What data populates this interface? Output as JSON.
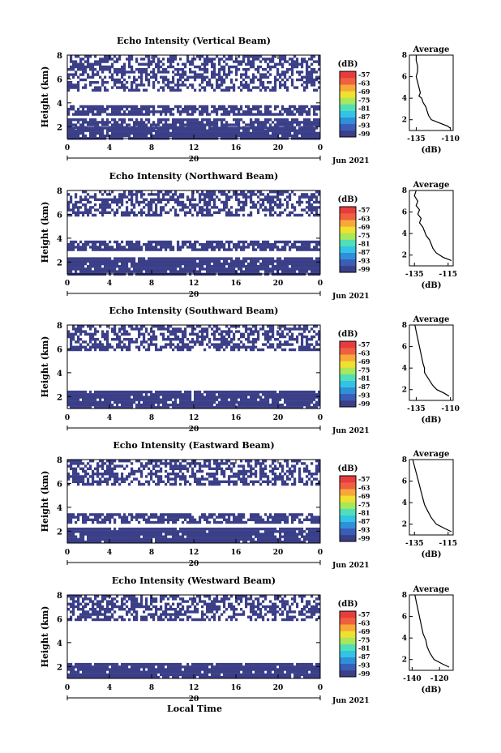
{
  "figure": {
    "xlabel_bottom": "Local Time",
    "colorbar_unit": "(dB)",
    "colorbar_ticks": [
      "-57",
      "-63",
      "-69",
      "-75",
      "-81",
      "-87",
      "-93",
      "-99"
    ],
    "colormap": [
      "#3b3f88",
      "#3a5db6",
      "#2f8fd8",
      "#33c3e6",
      "#4fe0b8",
      "#a8e85a",
      "#f0e030",
      "#f8a838",
      "#f06040",
      "#e83c3c"
    ],
    "background_color": "#3b3f88"
  },
  "chart_data": [
    {
      "type": "heatmap",
      "title": "Echo Intensity (Vertical Beam)",
      "ylabel": "Height (km)",
      "yticks": [
        "2",
        "4",
        "6",
        "8"
      ],
      "ylim": [
        1,
        8
      ],
      "xticks": [
        "0",
        "4",
        "8",
        "12",
        "16",
        "20",
        "0"
      ],
      "xlim": [
        0,
        24
      ],
      "date_marker": "20",
      "date_label": "Jun 2021",
      "colorbar_unit": "(dB)",
      "colorbar_ticks": [
        "-57",
        "-63",
        "-69",
        "-75",
        "-81",
        "-87",
        "-93",
        "-99"
      ],
      "value_range": [
        -99,
        -57
      ],
      "echo_bands_km": [
        [
          1.0,
          2.0
        ],
        [
          2.0,
          2.7
        ],
        [
          3.0,
          3.8
        ],
        [
          5.0,
          8.0
        ]
      ],
      "average_profile": {
        "title": "Average",
        "xlabel": "(dB)",
        "xticks": [
          "-135",
          "-110"
        ],
        "xlim": [
          -140,
          -108
        ],
        "points": [
          [
            -135,
            8.0
          ],
          [
            -135,
            7.5
          ],
          [
            -134,
            7.0
          ],
          [
            -134,
            6.5
          ],
          [
            -135,
            6.0
          ],
          [
            -134,
            5.5
          ],
          [
            -133,
            5.0
          ],
          [
            -132,
            4.5
          ],
          [
            -133,
            4.2
          ],
          [
            -131,
            4.0
          ],
          [
            -130,
            3.6
          ],
          [
            -128,
            3.2
          ],
          [
            -127,
            2.8
          ],
          [
            -126,
            2.4
          ],
          [
            -124,
            2.0
          ],
          [
            -118,
            1.7
          ],
          [
            -112,
            1.4
          ],
          [
            -110,
            1.2
          ]
        ]
      }
    },
    {
      "type": "heatmap",
      "title": "Echo Intensity (Northward Beam)",
      "ylabel": "Height (km)",
      "yticks": [
        "2",
        "4",
        "6",
        "8"
      ],
      "ylim": [
        1,
        8
      ],
      "xticks": [
        "0",
        "4",
        "8",
        "12",
        "16",
        "20",
        "0"
      ],
      "xlim": [
        0,
        24
      ],
      "date_marker": "20",
      "date_label": "Jun 2021",
      "colorbar_unit": "(dB)",
      "colorbar_ticks": [
        "-57",
        "-63",
        "-69",
        "-75",
        "-81",
        "-87",
        "-93",
        "-99"
      ],
      "value_range": [
        -99,
        -57
      ],
      "echo_bands_km": [
        [
          1.0,
          2.4
        ],
        [
          3.0,
          3.8
        ],
        [
          6.0,
          8.0
        ]
      ],
      "average_profile": {
        "title": "Average",
        "xlabel": "(dB)",
        "xticks": [
          "-135",
          "-115"
        ],
        "xlim": [
          -138,
          -112
        ],
        "points": [
          [
            -134,
            8.0
          ],
          [
            -135,
            7.5
          ],
          [
            -133,
            7.0
          ],
          [
            -134,
            6.6
          ],
          [
            -132,
            6.2
          ],
          [
            -133,
            5.8
          ],
          [
            -131,
            5.4
          ],
          [
            -132,
            5.0
          ],
          [
            -130,
            4.6
          ],
          [
            -129,
            4.2
          ],
          [
            -128,
            3.8
          ],
          [
            -126,
            3.4
          ],
          [
            -125,
            3.0
          ],
          [
            -124,
            2.6
          ],
          [
            -122,
            2.2
          ],
          [
            -118,
            1.8
          ],
          [
            -113,
            1.5
          ]
        ]
      }
    },
    {
      "type": "heatmap",
      "title": "Echo Intensity (Southward Beam)",
      "ylabel": "Height (km)",
      "yticks": [
        "2",
        "4",
        "6",
        "8"
      ],
      "ylim": [
        1,
        8
      ],
      "xticks": [
        "0",
        "4",
        "8",
        "12",
        "16",
        "20",
        "0"
      ],
      "xlim": [
        0,
        24
      ],
      "date_marker": "20",
      "date_label": "Jun 2021",
      "colorbar_unit": "(dB)",
      "colorbar_ticks": [
        "-57",
        "-63",
        "-69",
        "-75",
        "-81",
        "-87",
        "-93",
        "-99"
      ],
      "value_range": [
        -99,
        -57
      ],
      "echo_bands_km": [
        [
          1.0,
          2.5
        ],
        [
          6.0,
          8.0
        ]
      ],
      "average_profile": {
        "title": "Average",
        "xlabel": "(dB)",
        "xticks": [
          "-135",
          "-110"
        ],
        "xlim": [
          -140,
          -108
        ],
        "points": [
          [
            -136,
            8.0
          ],
          [
            -135,
            7.4
          ],
          [
            -134,
            6.8
          ],
          [
            -133,
            6.2
          ],
          [
            -132,
            5.6
          ],
          [
            -131,
            5.0
          ],
          [
            -130,
            4.4
          ],
          [
            -129,
            4.0
          ],
          [
            -129,
            3.6
          ],
          [
            -127,
            3.2
          ],
          [
            -125,
            2.8
          ],
          [
            -123,
            2.4
          ],
          [
            -120,
            2.0
          ],
          [
            -115,
            1.7
          ],
          [
            -111,
            1.4
          ]
        ]
      }
    },
    {
      "type": "heatmap",
      "title": "Echo Intensity (Eastward Beam)",
      "ylabel": "Height (km)",
      "yticks": [
        "2",
        "4",
        "6",
        "8"
      ],
      "ylim": [
        1,
        8
      ],
      "xticks": [
        "0",
        "4",
        "8",
        "12",
        "16",
        "20",
        "0"
      ],
      "xlim": [
        0,
        24
      ],
      "date_marker": "20",
      "date_label": "Jun 2021",
      "colorbar_unit": "(dB)",
      "colorbar_ticks": [
        "-57",
        "-63",
        "-69",
        "-75",
        "-81",
        "-87",
        "-93",
        "-99"
      ],
      "value_range": [
        -99,
        -57
      ],
      "echo_bands_km": [
        [
          1.0,
          2.3
        ],
        [
          2.8,
          3.5
        ],
        [
          6.0,
          8.0
        ]
      ],
      "average_profile": {
        "title": "Average",
        "xlabel": "(dB)",
        "xticks": [
          "-135",
          "-115"
        ],
        "xlim": [
          -138,
          -112
        ],
        "points": [
          [
            -136,
            8.0
          ],
          [
            -135,
            7.4
          ],
          [
            -134,
            6.8
          ],
          [
            -133,
            6.2
          ],
          [
            -132,
            5.6
          ],
          [
            -131,
            5.0
          ],
          [
            -130,
            4.4
          ],
          [
            -129,
            3.8
          ],
          [
            -127,
            3.2
          ],
          [
            -125,
            2.6
          ],
          [
            -122,
            2.0
          ],
          [
            -117,
            1.6
          ],
          [
            -113,
            1.3
          ]
        ]
      }
    },
    {
      "type": "heatmap",
      "title": "Echo Intensity (Westward Beam)",
      "ylabel": "Height (km)",
      "yticks": [
        "2",
        "4",
        "6",
        "8"
      ],
      "ylim": [
        1,
        8
      ],
      "xticks": [
        "0",
        "4",
        "8",
        "12",
        "16",
        "20",
        "0"
      ],
      "xlim": [
        0,
        24
      ],
      "date_marker": "20",
      "date_label": "Jun 2021",
      "colorbar_unit": "(dB)",
      "colorbar_ticks": [
        "-57",
        "-63",
        "-69",
        "-75",
        "-81",
        "-87",
        "-93",
        "-99"
      ],
      "value_range": [
        -99,
        -57
      ],
      "echo_bands_km": [
        [
          1.0,
          2.3
        ],
        [
          6.0,
          8.0
        ]
      ],
      "average_profile": {
        "title": "Average",
        "xlabel": "(dB)",
        "xticks": [
          "-140",
          "-120"
        ],
        "xlim": [
          -142,
          -110
        ],
        "points": [
          [
            -138,
            8.0
          ],
          [
            -137,
            7.4
          ],
          [
            -136,
            6.8
          ],
          [
            -135,
            6.2
          ],
          [
            -134,
            5.6
          ],
          [
            -133,
            5.0
          ],
          [
            -132,
            4.4
          ],
          [
            -130,
            3.8
          ],
          [
            -129,
            3.2
          ],
          [
            -127,
            2.6
          ],
          [
            -124,
            2.0
          ],
          [
            -118,
            1.6
          ],
          [
            -113,
            1.3
          ]
        ]
      }
    }
  ]
}
